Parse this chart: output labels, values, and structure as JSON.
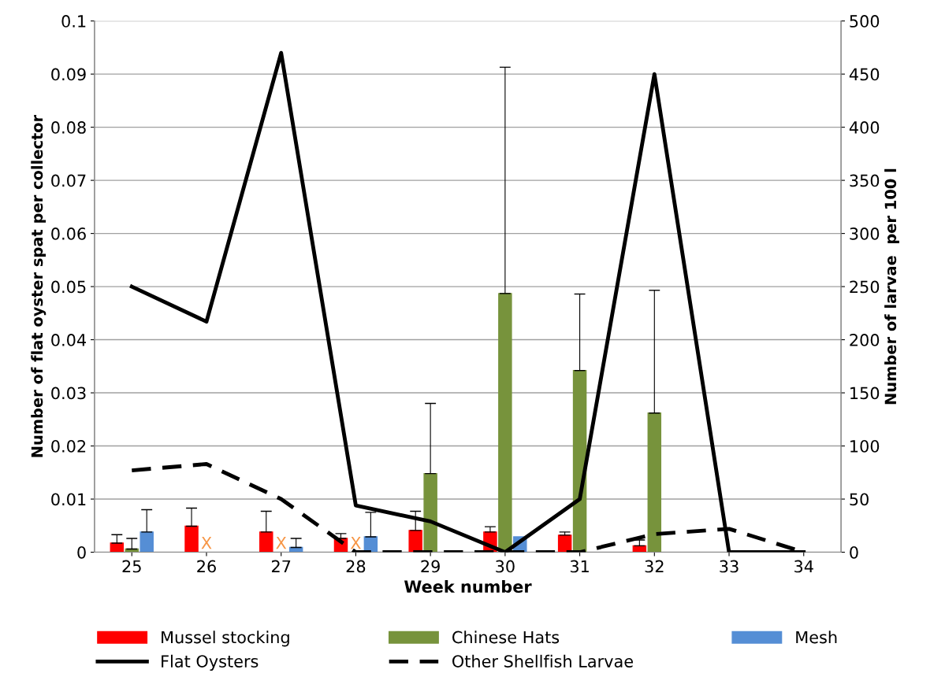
{
  "chart_data": {
    "type": "bar",
    "xlabel": "Week number",
    "ylabel": "Number of flat oyster spat per collector",
    "y2label": "Number of larvae  per 100 l",
    "categories": [
      "25",
      "26",
      "27",
      "28",
      "29",
      "30",
      "31",
      "32",
      "33",
      "34"
    ],
    "ylim": [
      0,
      0.1
    ],
    "yticks": [
      0,
      0.01,
      0.02,
      0.03,
      0.04,
      0.05,
      0.06,
      0.07,
      0.08,
      0.09,
      0.1
    ],
    "y2lim": [
      0,
      500
    ],
    "y2ticks": [
      0,
      50,
      100,
      150,
      200,
      250,
      300,
      350,
      400,
      450,
      500
    ],
    "grid": "y",
    "legend": "bottom",
    "series": [
      {
        "name": "Mussel stocking",
        "color": "#ff0000",
        "values": [
          0.0017,
          0.0049,
          0.0038,
          0.0026,
          0.0041,
          0.0038,
          0.0032,
          0.0012,
          null,
          null
        ],
        "errors": [
          [
            0.0017,
            0.0033
          ],
          [
            0.0049,
            0.0083
          ],
          [
            0.0038,
            0.0077
          ],
          [
            0.0026,
            0.0035
          ],
          [
            0.0041,
            0.0077
          ],
          [
            0.0038,
            0.0048
          ],
          [
            0.0032,
            0.0038
          ],
          [
            0.0012,
            0.0023
          ],
          null,
          null
        ]
      },
      {
        "name": "Chinese Hats",
        "color": "#77933c",
        "values": [
          0.0006,
          null,
          null,
          null,
          0.0148,
          0.0487,
          0.0342,
          0.0262,
          null,
          null
        ],
        "errors": [
          [
            0.0006,
            0.0026
          ],
          null,
          null,
          null,
          [
            0.0148,
            0.028
          ],
          [
            0.0487,
            0.0913
          ],
          [
            0.0342,
            0.0486
          ],
          [
            0.0262,
            0.0493
          ],
          null,
          null
        ]
      },
      {
        "name": "Mesh",
        "color": "#558ed5",
        "values": [
          0.0038,
          null,
          0.0009,
          0.0029,
          null,
          0.0029,
          null,
          null,
          null,
          null
        ],
        "errors": [
          [
            0.0038,
            0.008
          ],
          null,
          [
            0.0009,
            0.0026
          ],
          [
            0.0029,
            0.0075
          ],
          null,
          null,
          null,
          null,
          null,
          null
        ]
      },
      {
        "name": "Flat Oysters",
        "type": "line",
        "axis": "y2",
        "line_style": "solid",
        "color": "#000000",
        "values": [
          250,
          217,
          470,
          44,
          29,
          0,
          50,
          450,
          0,
          0
        ]
      },
      {
        "name": "Other Shellfish Larvae",
        "type": "line",
        "axis": "y2",
        "line_style": "dashed",
        "color": "#000000",
        "values": [
          77,
          83,
          50,
          0,
          0,
          0,
          0,
          17,
          22,
          0
        ]
      }
    ],
    "annotations": [
      "X",
      "X",
      "X"
    ]
  }
}
